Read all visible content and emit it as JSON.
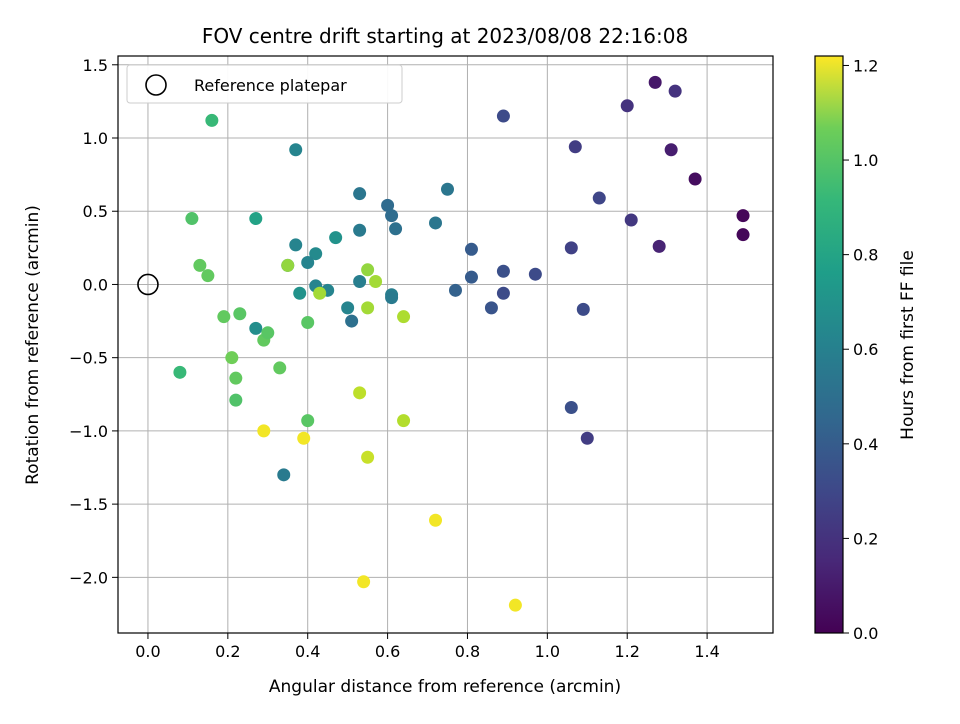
{
  "chart_data": {
    "type": "scatter",
    "title": "FOV centre drift starting at 2023/08/08 22:16:08",
    "xlabel": "Angular distance from reference (arcmin)",
    "ylabel": "Rotation from reference (arcmin)",
    "xlim": [
      -0.075,
      1.565
    ],
    "ylim": [
      -2.38,
      1.56
    ],
    "xticks": [
      0.0,
      0.2,
      0.4,
      0.6,
      0.8,
      1.0,
      1.2,
      1.4
    ],
    "yticks": [
      -2.0,
      -1.5,
      -1.0,
      -0.5,
      0.0,
      0.5,
      1.0,
      1.5
    ],
    "grid": true,
    "legend": {
      "placement": "top-left",
      "entries": [
        "Reference platepar"
      ]
    },
    "reference_point": [
      0,
      0
    ],
    "colorbar": {
      "label": "Hours from first FF file",
      "range": [
        0,
        1.22
      ],
      "ticks": [
        0.0,
        0.2,
        0.4,
        0.6,
        0.8,
        1.0,
        1.2
      ],
      "colormap": "viridis"
    },
    "points": [
      [
        1.49,
        0.47,
        0.02
      ],
      [
        1.49,
        0.34,
        0.02
      ],
      [
        1.37,
        0.72,
        0.04
      ],
      [
        1.27,
        1.38,
        0.08
      ],
      [
        1.31,
        0.92,
        0.1
      ],
      [
        1.28,
        0.26,
        0.12
      ],
      [
        1.32,
        1.32,
        0.18
      ],
      [
        1.2,
        1.22,
        0.18
      ],
      [
        1.21,
        0.44,
        0.2
      ],
      [
        1.13,
        0.59,
        0.26
      ],
      [
        1.07,
        0.94,
        0.22
      ],
      [
        1.06,
        0.25,
        0.24
      ],
      [
        1.09,
        -0.17,
        0.28
      ],
      [
        1.06,
        -0.84,
        0.3
      ],
      [
        1.1,
        -1.05,
        0.22
      ],
      [
        0.89,
        1.15,
        0.28
      ],
      [
        0.97,
        0.07,
        0.28
      ],
      [
        0.89,
        0.09,
        0.3
      ],
      [
        0.89,
        -0.06,
        0.28
      ],
      [
        0.86,
        -0.16,
        0.32
      ],
      [
        0.81,
        0.24,
        0.35
      ],
      [
        0.81,
        0.05,
        0.35
      ],
      [
        0.77,
        -0.04,
        0.38
      ],
      [
        0.75,
        0.65,
        0.48
      ],
      [
        0.72,
        0.42,
        0.48
      ],
      [
        0.6,
        0.54,
        0.42
      ],
      [
        0.61,
        0.47,
        0.43
      ],
      [
        0.62,
        0.38,
        0.45
      ],
      [
        0.61,
        -0.07,
        0.52
      ],
      [
        0.61,
        -0.09,
        0.5
      ],
      [
        0.53,
        0.62,
        0.48
      ],
      [
        0.53,
        0.37,
        0.5
      ],
      [
        0.53,
        0.02,
        0.52
      ],
      [
        0.51,
        -0.25,
        0.45
      ],
      [
        0.5,
        -0.16,
        0.55
      ],
      [
        0.47,
        0.32,
        0.62
      ],
      [
        0.42,
        0.21,
        0.58
      ],
      [
        0.4,
        0.15,
        0.55
      ],
      [
        0.42,
        -0.01,
        0.55
      ],
      [
        0.45,
        -0.04,
        0.55
      ],
      [
        0.37,
        0.92,
        0.55
      ],
      [
        0.37,
        0.27,
        0.55
      ],
      [
        0.38,
        -0.06,
        0.62
      ],
      [
        0.35,
        0.13,
        0.5
      ],
      [
        0.34,
        -1.3,
        0.5
      ],
      [
        0.27,
        -0.3,
        0.6
      ],
      [
        0.27,
        0.45,
        0.7
      ],
      [
        0.16,
        1.12,
        0.82
      ],
      [
        0.11,
        0.45,
        0.88
      ],
      [
        0.08,
        -0.6,
        0.82
      ],
      [
        0.13,
        0.13,
        0.92
      ],
      [
        0.15,
        0.06,
        0.92
      ],
      [
        0.19,
        -0.22,
        0.92
      ],
      [
        0.23,
        -0.2,
        0.9
      ],
      [
        0.21,
        -0.5,
        0.95
      ],
      [
        0.22,
        -0.64,
        0.92
      ],
      [
        0.22,
        -0.79,
        0.88
      ],
      [
        0.29,
        -0.38,
        0.92
      ],
      [
        0.3,
        -0.33,
        0.9
      ],
      [
        0.33,
        -0.57,
        0.92
      ],
      [
        0.4,
        -0.26,
        0.9
      ],
      [
        0.4,
        -0.93,
        0.9
      ],
      [
        0.35,
        0.13,
        1.02
      ],
      [
        0.43,
        -0.06,
        1.05
      ],
      [
        0.55,
        0.1,
        1.02
      ],
      [
        0.57,
        0.02,
        1.05
      ],
      [
        0.55,
        -0.16,
        1.05
      ],
      [
        0.64,
        -0.22,
        1.07
      ],
      [
        0.64,
        -0.93,
        1.08
      ],
      [
        0.53,
        -0.74,
        1.1
      ],
      [
        0.55,
        -1.18,
        1.12
      ],
      [
        0.29,
        -1.0,
        1.2
      ],
      [
        0.39,
        -1.05,
        1.2
      ],
      [
        0.72,
        -1.61,
        1.2
      ],
      [
        0.54,
        -2.03,
        1.2
      ],
      [
        0.92,
        -2.19,
        1.2
      ]
    ]
  }
}
